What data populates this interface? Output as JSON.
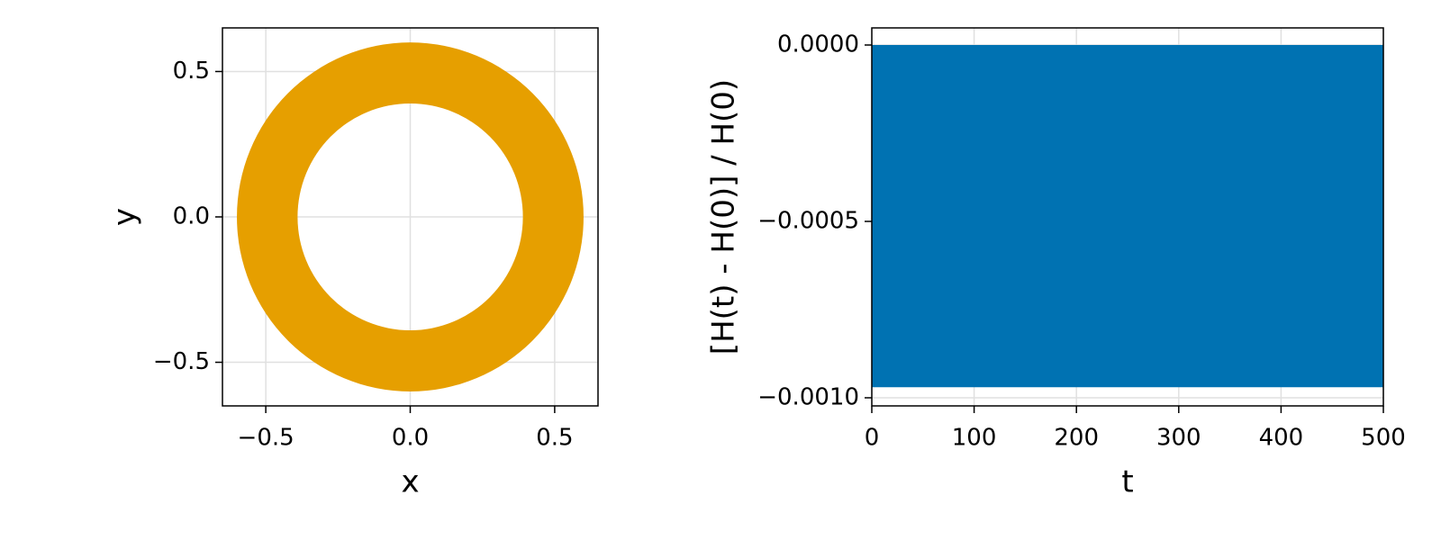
{
  "chart_data": [
    {
      "type": "ring",
      "xlabel": "x",
      "ylabel": "y",
      "center": [
        0,
        0
      ],
      "radii": [
        0.39,
        0.6
      ],
      "color": "#E69F00",
      "xlim": [
        -0.65,
        0.65
      ],
      "ylim": [
        -0.65,
        0.65
      ],
      "xticks": [
        {
          "value": -0.5,
          "label": "−0.5"
        },
        {
          "value": 0,
          "label": "0.0"
        },
        0.5
      ],
      "yticks": [
        {
          "value": -0.5,
          "label": "−0.5"
        },
        {
          "value": 0,
          "label": "0.0"
        },
        0.5
      ],
      "grid": true
    },
    {
      "type": "band",
      "xlabel": "t",
      "ylabel": "[H(t) - H(0)] / H(0)",
      "x": [
        0,
        500
      ],
      "upper": [
        0,
        0
      ],
      "lower": [
        -0.00097,
        -0.00097
      ],
      "color": "#0072B2",
      "xlim": [
        0,
        500
      ],
      "ylim": [
        -0.001023,
        4.85e-05
      ],
      "xticks": [
        0,
        100,
        200,
        300,
        400,
        500
      ],
      "yticks": [
        {
          "value": 0,
          "label": "0.0000"
        },
        {
          "value": -0.0005,
          "label": "−0.0005"
        },
        {
          "value": -0.001,
          "label": "−0.0010"
        }
      ],
      "grid": true
    }
  ]
}
